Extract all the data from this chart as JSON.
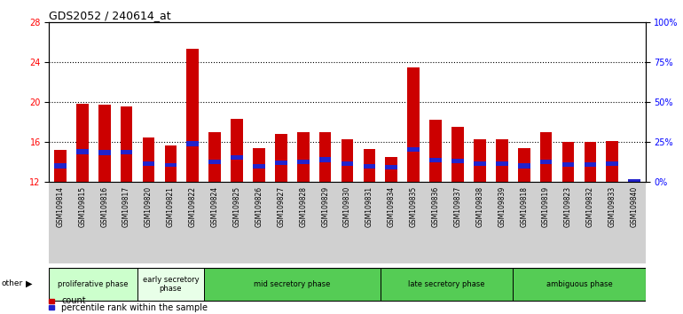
{
  "title": "GDS2052 / 240614_at",
  "samples": [
    "GSM109814",
    "GSM109815",
    "GSM109816",
    "GSM109817",
    "GSM109820",
    "GSM109821",
    "GSM109822",
    "GSM109824",
    "GSM109825",
    "GSM109826",
    "GSM109827",
    "GSM109828",
    "GSM109829",
    "GSM109830",
    "GSM109831",
    "GSM109834",
    "GSM109835",
    "GSM109836",
    "GSM109837",
    "GSM109838",
    "GSM109839",
    "GSM109818",
    "GSM109819",
    "GSM109823",
    "GSM109832",
    "GSM109833",
    "GSM109840"
  ],
  "count_tops": [
    15.2,
    19.8,
    19.7,
    19.6,
    16.5,
    15.7,
    25.3,
    17.0,
    18.3,
    15.4,
    16.8,
    17.0,
    17.0,
    16.3,
    15.3,
    14.5,
    23.5,
    18.2,
    17.5,
    16.3,
    16.3,
    15.4,
    17.0,
    16.0,
    16.0,
    16.1,
    12.3
  ],
  "pct_bottoms": [
    13.4,
    14.8,
    14.7,
    14.8,
    13.6,
    13.5,
    15.6,
    13.8,
    14.2,
    13.4,
    13.7,
    13.8,
    14.0,
    13.6,
    13.4,
    13.3,
    15.0,
    14.0,
    13.9,
    13.6,
    13.6,
    13.4,
    13.8,
    13.5,
    13.5,
    13.6,
    12.0
  ],
  "pct_heights": [
    0.45,
    0.5,
    0.5,
    0.45,
    0.45,
    0.4,
    0.5,
    0.45,
    0.5,
    0.4,
    0.45,
    0.45,
    0.5,
    0.45,
    0.4,
    0.4,
    0.5,
    0.45,
    0.45,
    0.45,
    0.45,
    0.45,
    0.45,
    0.45,
    0.45,
    0.45,
    0.3
  ],
  "bar_bottom": 12,
  "ylim_left": [
    12,
    28
  ],
  "ylim_right": [
    0,
    100
  ],
  "yticks_left": [
    12,
    16,
    20,
    24,
    28
  ],
  "yticks_right": [
    0,
    25,
    50,
    75,
    100
  ],
  "ytick_labels_right": [
    "0%",
    "25%",
    "50%",
    "75%",
    "100%"
  ],
  "dotted_lines": [
    16,
    20,
    24
  ],
  "count_color": "#cc0000",
  "percentile_color": "#2222cc",
  "phases": [
    {
      "label": "proliferative phase",
      "start": 0,
      "end": 4,
      "color": "#ccffcc"
    },
    {
      "label": "early secretory\nphase",
      "start": 4,
      "end": 7,
      "color": "#e8ffe8"
    },
    {
      "label": "mid secretory phase",
      "start": 7,
      "end": 15,
      "color": "#55cc55"
    },
    {
      "label": "late secretory phase",
      "start": 15,
      "end": 21,
      "color": "#55cc55"
    },
    {
      "label": "ambiguous phase",
      "start": 21,
      "end": 27,
      "color": "#55cc55"
    }
  ],
  "legend_count": "count",
  "legend_percentile": "percentile rank within the sample",
  "bar_width": 0.55,
  "tickbg_color": "#d0d0d0"
}
